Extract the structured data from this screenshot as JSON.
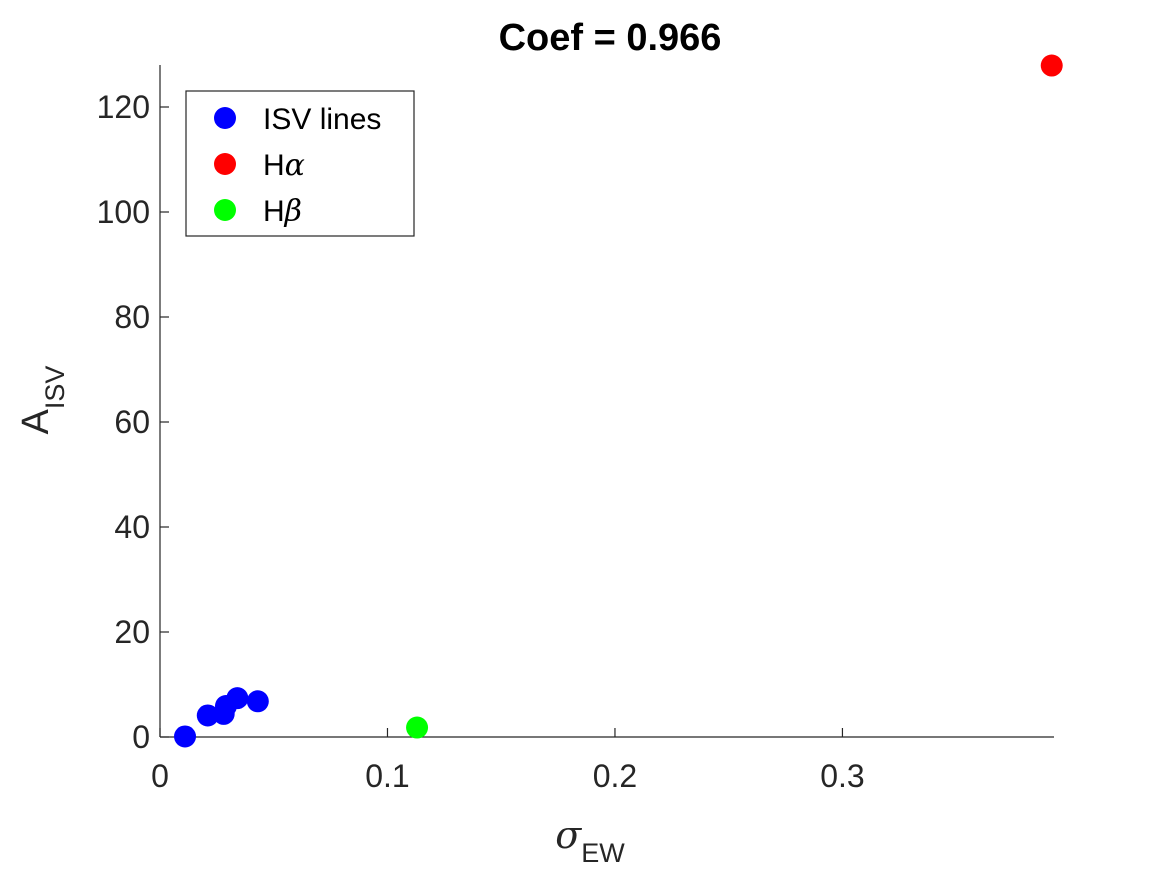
{
  "chart_data": {
    "type": "scatter",
    "title": "Coef = 0.966",
    "xlabel": {
      "main": "σ",
      "sub": "EW"
    },
    "ylabel": {
      "main": "A",
      "sub": "ISV"
    },
    "xlim": [
      0,
      0.393
    ],
    "ylim": [
      0,
      128
    ],
    "xticks": [
      0,
      0.1,
      0.2,
      0.3
    ],
    "xtick_labels": [
      "0",
      "0.1",
      "0.2",
      "0.3"
    ],
    "yticks": [
      0,
      20,
      40,
      60,
      80,
      100,
      120
    ],
    "ytick_labels": [
      "0",
      "20",
      "40",
      "60",
      "80",
      "100",
      "120"
    ],
    "grid": false,
    "legend_position": "top-left",
    "series": [
      {
        "name": "ISV lines",
        "label_main": "ISV lines",
        "label_greek": "",
        "color": "#0000ff",
        "points": [
          {
            "x": 0.011,
            "y": 0.1
          },
          {
            "x": 0.021,
            "y": 4.1
          },
          {
            "x": 0.028,
            "y": 4.4
          },
          {
            "x": 0.029,
            "y": 5.9
          },
          {
            "x": 0.034,
            "y": 7.4
          },
          {
            "x": 0.043,
            "y": 6.8
          }
        ]
      },
      {
        "name": "Hα",
        "label_main": "H",
        "label_greek": "α",
        "color": "#ff0000",
        "points": [
          {
            "x": 0.392,
            "y": 127.9
          }
        ]
      },
      {
        "name": "Hβ",
        "label_main": "H",
        "label_greek": "β",
        "color": "#00ff00",
        "points": [
          {
            "x": 0.113,
            "y": 1.8
          }
        ]
      }
    ]
  }
}
